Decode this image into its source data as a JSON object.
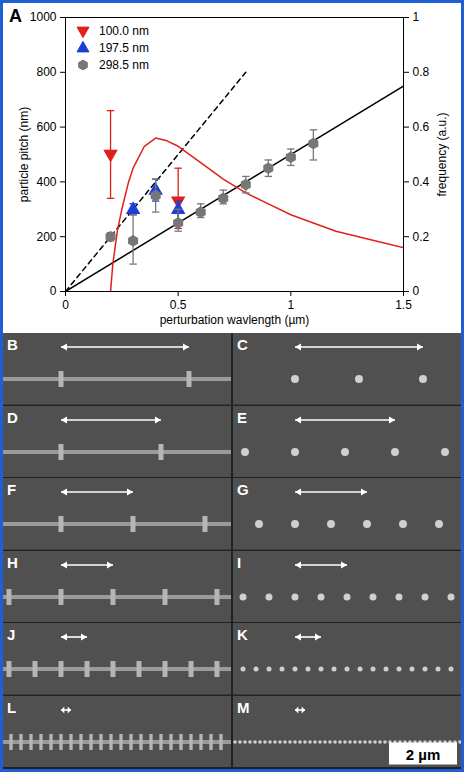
{
  "chart_data": {
    "type": "scatter",
    "annotations": [
      "A"
    ],
    "xlabel": "perturbation wavlength (µm)",
    "ylabel": "particle pitch (nm)",
    "y2label": "frequency (a.u.)",
    "xlim": [
      0,
      1.5
    ],
    "xticks": [
      0,
      0.5,
      1,
      1.5
    ],
    "ylim": [
      0,
      1000
    ],
    "yticks": [
      0,
      200,
      400,
      600,
      800,
      1000
    ],
    "y2lim": [
      0,
      1
    ],
    "y2ticks": [
      0,
      0.2,
      0.4,
      0.6,
      0.8,
      1
    ],
    "grid": false,
    "legend": "top-left",
    "series": [
      {
        "type": "line",
        "color": "#000000",
        "line_style": "solid",
        "x": [
          0,
          1.5
        ],
        "values": [
          0,
          750
        ]
      },
      {
        "type": "line",
        "color": "#000000",
        "line_style": "dashed",
        "x": [
          0,
          0.8
        ],
        "values": [
          0,
          800
        ]
      },
      {
        "type": "line",
        "axis": "y2",
        "color": "#e0201b",
        "line_style": "solid",
        "x": [
          0.2,
          0.21,
          0.23,
          0.25,
          0.28,
          0.3,
          0.35,
          0.4,
          0.45,
          0.5,
          0.6,
          0.7,
          0.8,
          0.9,
          1.0,
          1.1,
          1.2,
          1.3,
          1.4,
          1.5
        ],
        "values": [
          0,
          0.1,
          0.22,
          0.3,
          0.4,
          0.45,
          0.53,
          0.56,
          0.55,
          0.53,
          0.47,
          0.41,
          0.36,
          0.32,
          0.28,
          0.25,
          0.22,
          0.2,
          0.18,
          0.16
        ]
      },
      {
        "type": "scatter",
        "name": "100.0 nm",
        "color": "#e0201b",
        "marker": "triangle-down",
        "x": [
          0.2,
          0.5
        ],
        "values": [
          500,
          330
        ],
        "error_bars": [
          [
            340,
            660
          ],
          [
            230,
            450
          ]
        ]
      },
      {
        "type": "scatter",
        "name": "197.5 nm",
        "color": "#1a3fd8",
        "marker": "triangle",
        "x": [
          0.3,
          0.4,
          0.5
        ],
        "values": [
          300,
          370,
          300
        ],
        "error_bars": [
          [
            280,
            320
          ],
          [
            330,
            410
          ],
          [
            250,
            330
          ]
        ]
      },
      {
        "type": "scatter",
        "name": "298.5 nm",
        "color": "#777777",
        "marker": "hexagon",
        "x": [
          0.2,
          0.3,
          0.4,
          0.5,
          0.6,
          0.7,
          0.8,
          0.9,
          1.0,
          1.1
        ],
        "values": [
          200,
          185,
          350,
          250,
          290,
          340,
          390,
          450,
          490,
          540
        ],
        "error_bars": [
          [
            185,
            215
          ],
          [
            100,
            280
          ],
          [
            290,
            410
          ],
          [
            220,
            300
          ],
          [
            270,
            320
          ],
          [
            320,
            370
          ],
          [
            360,
            420
          ],
          [
            420,
            480
          ],
          [
            460,
            520
          ],
          [
            480,
            590
          ]
        ]
      }
    ]
  },
  "image_panels": {
    "labels": [
      "B",
      "C",
      "D",
      "E",
      "F",
      "G",
      "H",
      "I",
      "J",
      "K",
      "L",
      "M"
    ],
    "scale_bar": "2 µm"
  }
}
